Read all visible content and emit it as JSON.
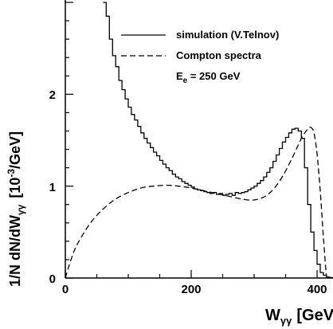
{
  "chart_data": {
    "type": "line",
    "xlabel": {
      "main": "W",
      "sub": "γγ",
      "unit": "[GeV]"
    },
    "ylabel": {
      "main": "1/N  dN/dW",
      "sub": "γγ",
      "unit": "[10",
      "exp": "-3",
      "unit_tail": "/GeV]"
    },
    "xlim": [
      0,
      500
    ],
    "ylim": [
      0,
      3
    ],
    "x_ticks": [
      "0",
      "200",
      "400"
    ],
    "y_ticks": [
      "0",
      "1",
      "2"
    ],
    "legend": {
      "placement": "top-right",
      "entries": [
        {
          "label": "simulation (V.Telnov)",
          "style": "solid"
        },
        {
          "label": "Compton spectra",
          "style": "dashed"
        }
      ],
      "note": {
        "main": "E",
        "sub": "e",
        "rest": " = 250 GeV"
      }
    },
    "series": [
      {
        "name": "simulation (V.Telnov)",
        "style": "histogram",
        "x": [
          60,
          65,
          70,
          75,
          80,
          85,
          90,
          95,
          100,
          105,
          110,
          115,
          120,
          125,
          130,
          135,
          140,
          145,
          150,
          155,
          160,
          165,
          170,
          175,
          180,
          185,
          190,
          195,
          200,
          205,
          210,
          215,
          220,
          225,
          230,
          235,
          240,
          245,
          250,
          255,
          260,
          265,
          270,
          275,
          280,
          285,
          290,
          295,
          300,
          305,
          310,
          315,
          320,
          325,
          330,
          335,
          340,
          345,
          350,
          355,
          360,
          365,
          370,
          375,
          380,
          385,
          390,
          395,
          400,
          405,
          410,
          415,
          420,
          425,
          430
        ],
        "y": [
          3.0,
          2.85,
          2.6,
          2.42,
          2.3,
          2.15,
          2.05,
          1.95,
          1.86,
          1.78,
          1.72,
          1.65,
          1.58,
          1.52,
          1.47,
          1.42,
          1.37,
          1.33,
          1.28,
          1.24,
          1.2,
          1.17,
          1.13,
          1.1,
          1.08,
          1.05,
          1.03,
          1.01,
          0.99,
          0.97,
          0.96,
          0.95,
          0.94,
          0.93,
          0.92,
          0.93,
          0.91,
          0.92,
          0.9,
          0.91,
          0.92,
          0.9,
          0.93,
          0.92,
          0.93,
          0.94,
          0.96,
          0.98,
          1.0,
          1.03,
          1.06,
          1.1,
          1.15,
          1.2,
          1.27,
          1.34,
          1.41,
          1.48,
          1.53,
          1.58,
          1.62,
          1.63,
          1.6,
          1.52,
          1.2,
          0.8,
          0.5,
          0.3,
          0.15,
          0.06,
          0.03,
          0.01,
          0.005,
          0.0,
          0.0
        ]
      },
      {
        "name": "Compton spectra",
        "style": "dashed",
        "x": [
          0,
          10,
          20,
          40,
          60,
          80,
          100,
          120,
          140,
          160,
          180,
          200,
          220,
          240,
          260,
          280,
          300,
          320,
          340,
          360,
          375,
          385,
          390,
          395,
          400,
          405,
          410,
          415
        ],
        "y": [
          0.0,
          0.22,
          0.38,
          0.6,
          0.75,
          0.86,
          0.93,
          0.98,
          1.0,
          1.01,
          1.0,
          0.98,
          0.95,
          0.92,
          0.89,
          0.86,
          0.85,
          0.9,
          1.05,
          1.3,
          1.52,
          1.62,
          1.64,
          1.58,
          1.35,
          0.95,
          0.45,
          0.0
        ]
      }
    ]
  }
}
